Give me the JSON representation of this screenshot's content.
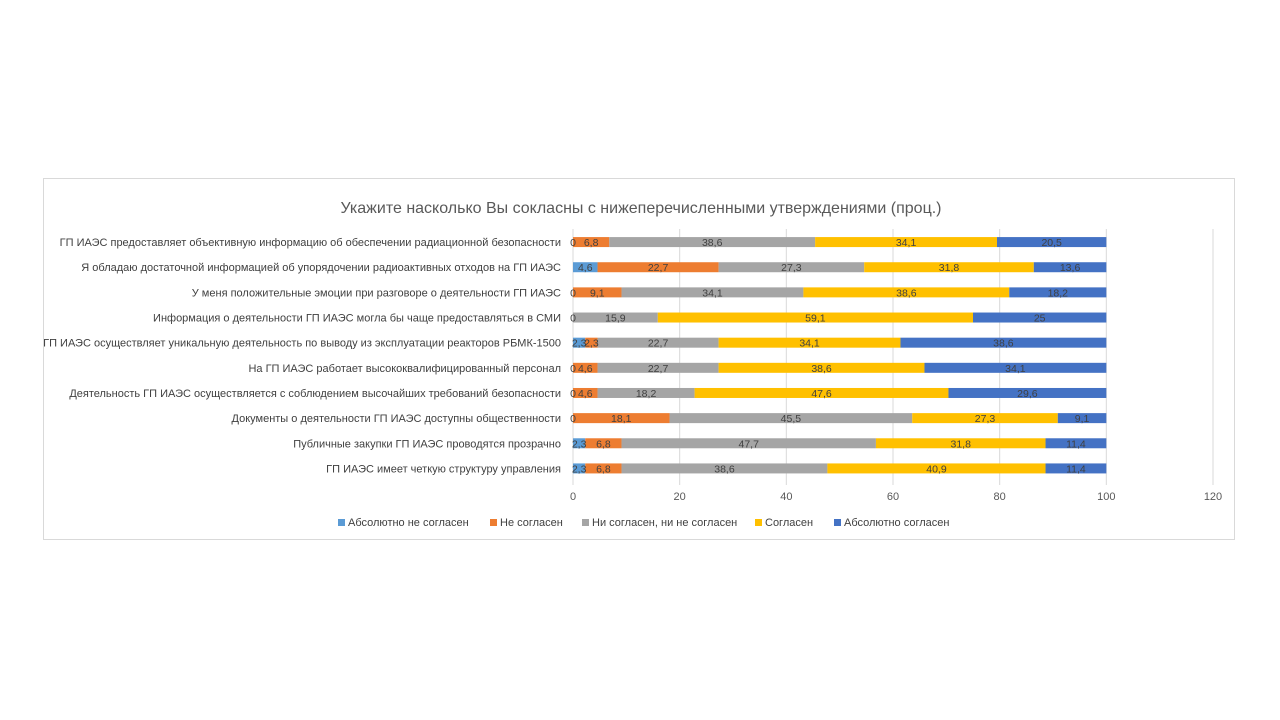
{
  "chart_data": {
    "type": "bar",
    "orientation": "horizontal",
    "stacked": true,
    "title": "Укажите насколько Вы сокласны с нижеперечисленными утверждениями (проц.)",
    "xlim": [
      0,
      120
    ],
    "xticks": [
      "0",
      "20",
      "40",
      "60",
      "80",
      "100",
      "120"
    ],
    "grid": true,
    "legend_position": "bottom",
    "categories": [
      "ГП ИАЭС предоставляет объективную информацию об обеспечении  радиационной безопасности",
      "Я обладаю достаточной информацией об упорядочении радиоактивных отходов на ГП ИАЭС",
      "У меня положительные эмоции при разговоре о деятельности ГП ИАЭС",
      "Информация о деятельности ГП ИАЭС могла бы чаще предоставляться в СМИ",
      "ГП ИАЭС осуществляет уникальную деятельность по выводу из эксплуатации реакторов РБМК-1500",
      "На ГП ИАЭС работает высококвалифицированный персонал",
      "Деятельность ГП ИАЭС осуществляется с соблюдением высочайших требований безопасности",
      "Документы о деятельности ГП ИАЭС доступны общественности",
      "Публичные закупки ГП ИАЭС проводятся прозрачно",
      "ГП ИАЭС имеет четкую структуру управления"
    ],
    "series": [
      {
        "name": "Абсолютно не согласен",
        "color": "#5b9bd5",
        "values": [
          0,
          4.6,
          0,
          0,
          2.3,
          0,
          0,
          0,
          2.3,
          2.3
        ]
      },
      {
        "name": "Не согласен",
        "color": "#ed7d31",
        "values": [
          6.8,
          22.7,
          9.1,
          0,
          2.3,
          4.6,
          4.6,
          18.1,
          6.8,
          6.8
        ]
      },
      {
        "name": "Ни согласен, ни не согласен",
        "color": "#a5a5a5",
        "values": [
          38.6,
          27.3,
          34.1,
          15.9,
          22.7,
          22.7,
          18.2,
          45.5,
          47.7,
          38.6
        ]
      },
      {
        "name": "Согласен",
        "color": "#ffc000",
        "values": [
          34.1,
          31.8,
          38.6,
          59.1,
          34.1,
          38.6,
          47.6,
          27.3,
          31.8,
          40.9
        ]
      },
      {
        "name": "Абсолютно согласен",
        "color": "#4472c4",
        "values": [
          20.5,
          13.6,
          18.2,
          25,
          38.6,
          34.1,
          29.6,
          9.1,
          11.4,
          11.4
        ]
      }
    ],
    "data_labels": [
      [
        null,
        "4,6",
        null,
        null,
        "2,3",
        null,
        null,
        null,
        "2,3",
        "2,3"
      ],
      [
        "6,8",
        "22,7",
        "9,1",
        null,
        "2,3",
        "4,6",
        "4,6",
        "18,1",
        "6,8",
        "6,8"
      ],
      [
        "38,6",
        "27,3",
        "34,1",
        "15,9",
        "22,7",
        "22,7",
        "18,2",
        "45,5",
        "47,7",
        "38,6"
      ],
      [
        "34,1",
        "31,8",
        "38,6",
        "59,1",
        "34,1",
        "38,6",
        "47,6",
        "27,3",
        "31,8",
        "40,9"
      ],
      [
        "20,5",
        "13,6",
        "18,2",
        "25",
        "38,6",
        "34,1",
        "29,6",
        "9,1",
        "11,4",
        "11,4"
      ]
    ],
    "zero_labels": [
      "0",
      null,
      "0",
      "0",
      null,
      "0",
      "0",
      "0",
      null,
      null
    ]
  }
}
